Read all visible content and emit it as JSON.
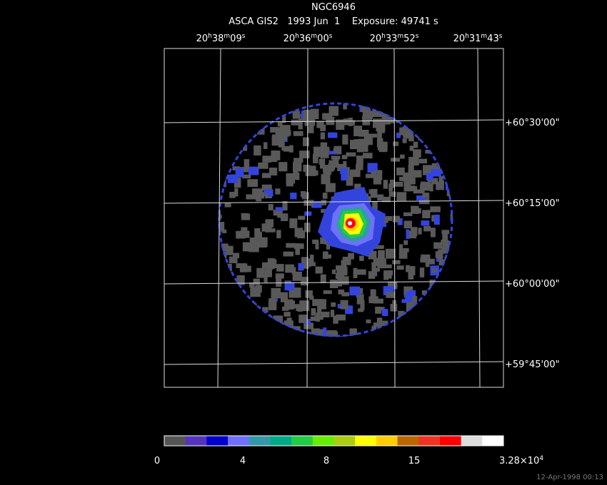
{
  "header": {
    "title": "NGC6946",
    "subtitle": "ASCA GIS2   1993 Jun  1    Exposure: 49741 s"
  },
  "ra_labels": [
    [
      "20",
      "h",
      "38",
      "m",
      "09",
      "s"
    ],
    [
      "20",
      "h",
      "36",
      "m",
      "00",
      "s"
    ],
    [
      "20",
      "h",
      "33",
      "m",
      "52",
      "s"
    ],
    [
      "20",
      "h",
      "31",
      "m",
      "43",
      "s"
    ]
  ],
  "dec_labels": [
    "+60°30'00\"",
    "+60°15'00\"",
    "+60°00'00\"",
    "+59°45'00\""
  ],
  "colorbar": {
    "colors": [
      "#555555",
      "#5533bb",
      "#0000cc",
      "#7070ff",
      "#3399aa",
      "#00aa88",
      "#22cc44",
      "#66ee00",
      "#aacc11",
      "#ffff00",
      "#ffcc00",
      "#bb6600",
      "#ee3322",
      "#ff0000",
      "#dddddd",
      "#ffffff"
    ],
    "labels": [
      [
        "0"
      ],
      [
        "4"
      ],
      [
        "8"
      ],
      [
        "15"
      ],
      [
        "3.28×10",
        "4"
      ]
    ]
  },
  "timestamp": "12-Apr-1998 00:13"
}
